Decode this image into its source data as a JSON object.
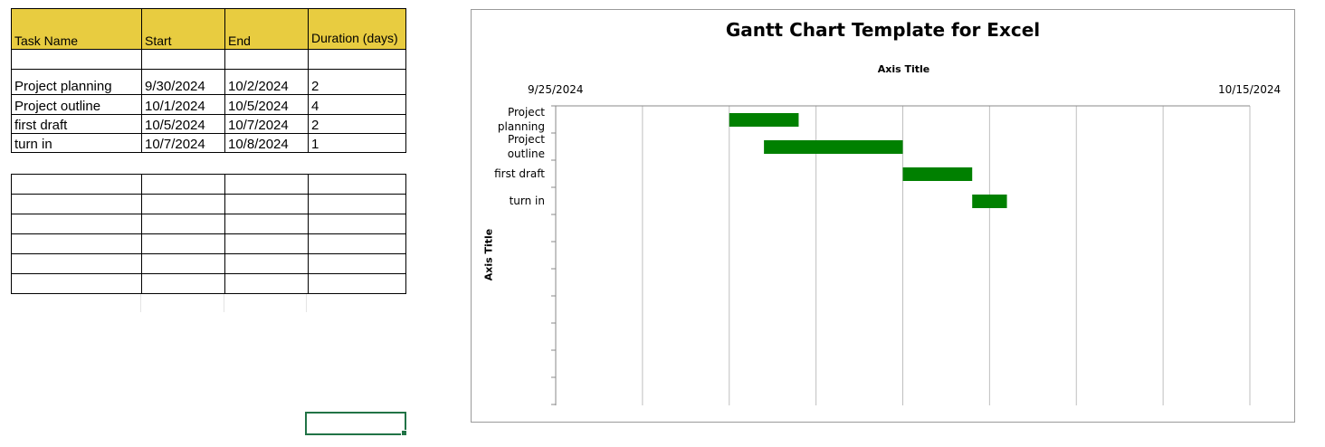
{
  "sheet": {
    "headers": [
      "Task Name",
      "Start",
      "End",
      "Duration (days)"
    ],
    "rows": [
      [
        "Project planning",
        "9/30/2024",
        "10/2/2024",
        "2"
      ],
      [
        "Project outline",
        "10/1/2024",
        "10/5/2024",
        "4"
      ],
      [
        "first draft",
        "10/5/2024",
        "10/7/2024",
        "2"
      ],
      [
        "turn in",
        "10/7/2024",
        "10/8/2024",
        "1"
      ]
    ]
  },
  "chart_data": {
    "type": "bar",
    "title": "Gantt Chart Template for Excel",
    "xlabel": "Axis Title",
    "ylabel": "Axis Title",
    "x_tick_labels": [
      "9/25/2024",
      "10/15/2024"
    ],
    "xlim": [
      "9/25/2024",
      "10/15/2024"
    ],
    "categories": [
      "Project planning",
      "Project outline",
      "first draft",
      "turn in"
    ],
    "series": [
      {
        "start": [
          "9/30/2024",
          "10/1/2024",
          "10/5/2024",
          "10/7/2024"
        ],
        "duration_days": [
          2,
          4,
          2,
          1
        ]
      }
    ],
    "bar_color": "#008000",
    "grid": true,
    "gridline_color": "#bfbfbf"
  }
}
